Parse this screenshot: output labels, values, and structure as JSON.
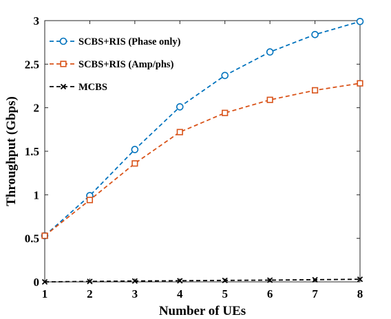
{
  "chart_data": {
    "type": "line",
    "title": "",
    "xlabel": "Number of UEs",
    "ylabel": "Throughput (Gbps)",
    "x": [
      1,
      2,
      3,
      4,
      5,
      6,
      7,
      8
    ],
    "xlim": [
      1,
      8
    ],
    "ylim": [
      0,
      3
    ],
    "xticks": [
      "1",
      "2",
      "3",
      "4",
      "5",
      "6",
      "7",
      "8"
    ],
    "yticks": [
      "0",
      "0.5",
      "1",
      "1.5",
      "2",
      "2.5",
      "3"
    ],
    "grid": false,
    "legend_position": "top-left",
    "series": [
      {
        "name": "SCBS+RIS (Phase only)",
        "color": "#0072BD",
        "marker": "circle",
        "line_style": "dashed",
        "values": [
          0.53,
          0.99,
          1.52,
          2.01,
          2.37,
          2.64,
          2.84,
          2.99
        ]
      },
      {
        "name": "SCBS+RIS (Amp/phs)",
        "color": "#D95319",
        "marker": "square",
        "line_style": "dashed",
        "values": [
          0.53,
          0.94,
          1.36,
          1.72,
          1.94,
          2.09,
          2.2,
          2.28
        ]
      },
      {
        "name": "MCBS",
        "color": "#000000",
        "marker": "x",
        "line_style": "dashed",
        "values": [
          0.0,
          0.005,
          0.01,
          0.013,
          0.017,
          0.02,
          0.025,
          0.03
        ]
      }
    ]
  }
}
